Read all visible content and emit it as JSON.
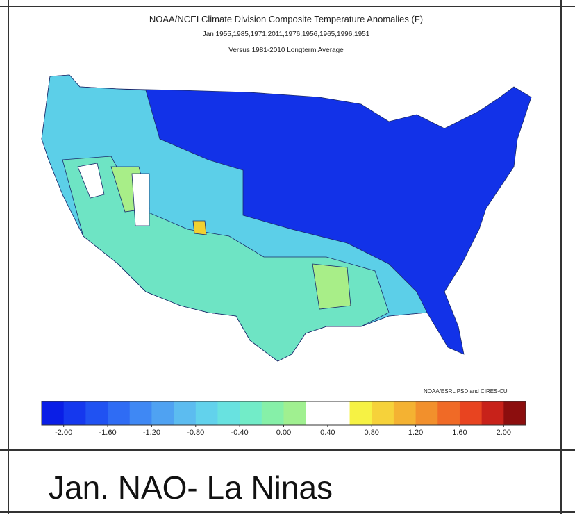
{
  "map": {
    "title": "NOAA/NCEI Climate Division Composite Temperature Anomalies (F)",
    "subtitle": "Jan  1955,1985,1971,2011,1976,1956,1965,1996,1951",
    "baseline": "Versus 1981-2010 Longterm Average",
    "credit": "NOAA/ESRL PSD and CIRES-CU",
    "legend": {
      "colors": [
        "#0a1ee6",
        "#1538ee",
        "#2052f2",
        "#2f6cf4",
        "#3f88f4",
        "#4fa2f2",
        "#5cbcf0",
        "#62d2ec",
        "#68e2e0",
        "#72ecc8",
        "#86f0a8",
        "#a0f090",
        "#ffffff",
        "#ffffff",
        "#f6f244",
        "#f6d23a",
        "#f4b232",
        "#f2902c",
        "#f06a26",
        "#e84420",
        "#c8221a",
        "#8c0e0e"
      ],
      "ticks": [
        "-2.00",
        "-1.60",
        "-1.20",
        "-0.80",
        "-0.40",
        "0.00",
        "0.40",
        "0.80",
        "1.20",
        "1.60",
        "2.00"
      ]
    }
  },
  "caption": "Jan. NAO- La Ninas"
}
